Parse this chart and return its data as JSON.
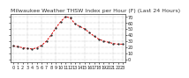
{
  "title": "Milwaukee Weather THSW Index per Hour (F) (Last 24 Hours)",
  "background_color": "#ffffff",
  "plot_bg_color": "#ffffff",
  "line_color": "#dd0000",
  "marker_color": "#222222",
  "grid_color": "#999999",
  "hours": [
    0,
    1,
    2,
    3,
    4,
    5,
    6,
    7,
    8,
    9,
    10,
    11,
    12,
    13,
    14,
    15,
    16,
    17,
    18,
    19,
    20,
    21,
    22,
    23
  ],
  "values": [
    22,
    21,
    19,
    18,
    17,
    19,
    23,
    30,
    40,
    52,
    62,
    70,
    68,
    58,
    54,
    50,
    44,
    38,
    33,
    30,
    28,
    26,
    25,
    25
  ],
  "ylim": [
    -5,
    75
  ],
  "yticks": [
    0,
    10,
    20,
    30,
    40,
    50,
    60,
    70
  ],
  "ytick_labels": [
    "0",
    "10",
    "20",
    "30",
    "40",
    "50",
    "60",
    "70"
  ],
  "title_fontsize": 4.5,
  "tick_fontsize": 3.5,
  "grid_vlines": [
    0,
    3,
    6,
    9,
    12,
    15,
    18,
    21,
    23
  ],
  "xtick_positions": [
    0,
    1,
    2,
    3,
    4,
    5,
    6,
    7,
    8,
    9,
    10,
    11,
    12,
    13,
    14,
    15,
    16,
    17,
    18,
    19,
    20,
    21,
    22,
    23
  ],
  "xtick_labels": [
    "0",
    "1",
    "2",
    "3",
    "4",
    "5",
    "6",
    "7",
    "8",
    "9",
    "10",
    "11",
    "12",
    "13",
    "14",
    "15",
    "16",
    "17",
    "18",
    "19",
    "20",
    "21",
    "22",
    "23"
  ]
}
